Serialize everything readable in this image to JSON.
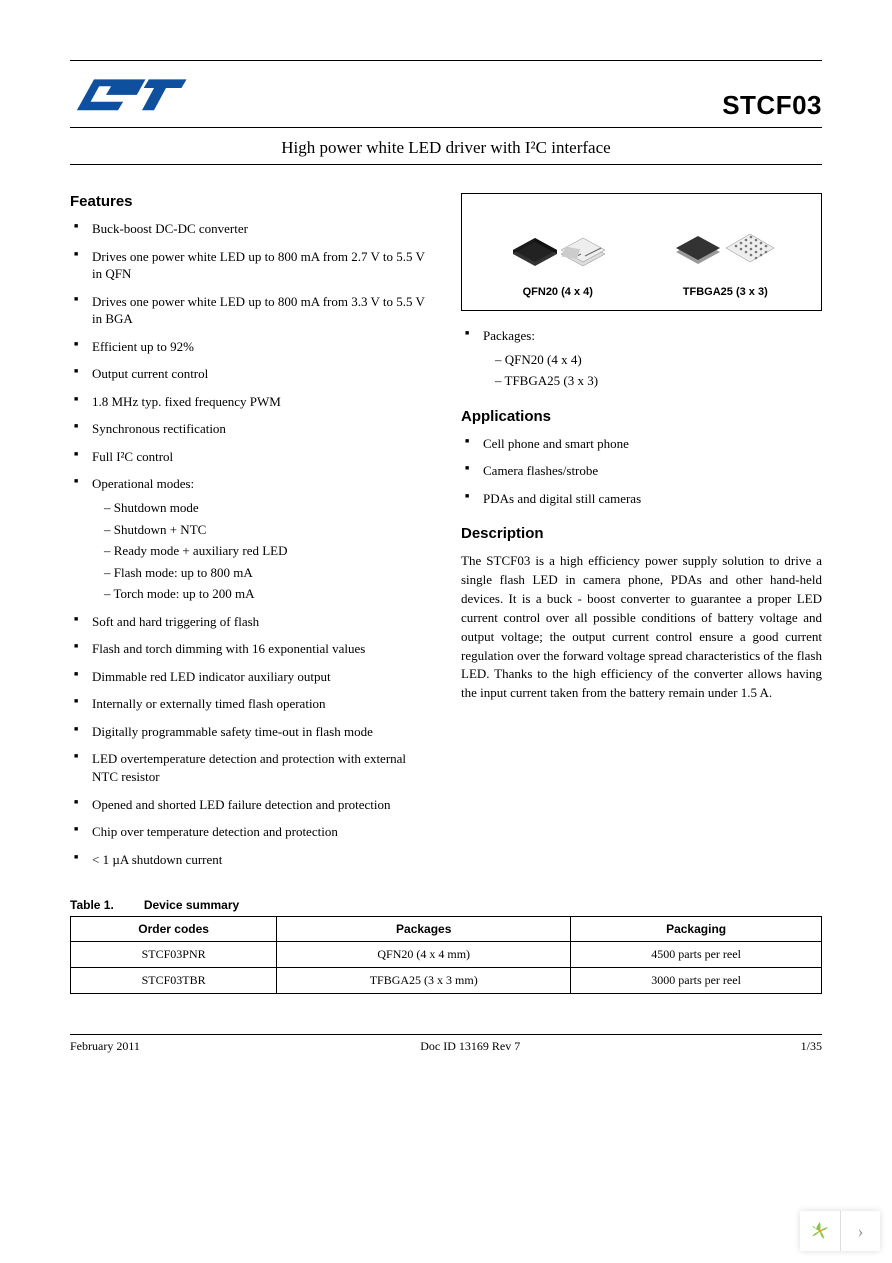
{
  "header": {
    "part_number": "STCF03",
    "subtitle": "High power white LED driver with I²C interface"
  },
  "features": {
    "heading": "Features",
    "items": [
      "Buck-boost DC-DC converter",
      "Drives one power white LED up to 800 mA from 2.7 V to 5.5 V in QFN",
      "Drives one power white LED up to 800 mA from 3.3 V to 5.5 V in BGA",
      "Efficient up to 92%",
      "Output current control",
      "1.8 MHz typ. fixed frequency PWM",
      "Synchronous rectification",
      "Full I²C control"
    ],
    "op_modes_label": "Operational modes:",
    "op_modes": [
      "Shutdown mode",
      "Shutdown + NTC",
      "Ready mode + auxiliary red LED",
      "Flash mode: up to 800 mA",
      "Torch mode: up to 200 mA"
    ],
    "items2": [
      "Soft and hard triggering of flash",
      "Flash and torch dimming with 16 exponential values",
      "Dimmable red LED indicator auxiliary output",
      "Internally or externally timed flash operation",
      "Digitally programmable safety time-out in flash mode",
      "LED overtemperature detection and protection with external NTC resistor",
      "Opened and shorted LED failure detection and protection",
      "Chip over temperature detection and protection",
      "< 1 µA shutdown current"
    ]
  },
  "packages": {
    "box": {
      "pkg1_label": "QFN20 (4 x 4)",
      "pkg2_label": "TFBGA25 (3 x 3)"
    },
    "list_heading": "Packages:",
    "list": [
      "QFN20  (4 x 4)",
      "TFBGA25 (3 x 3)"
    ]
  },
  "applications": {
    "heading": "Applications",
    "items": [
      "Cell phone and smart phone",
      "Camera flashes/strobe",
      "PDAs and digital still cameras"
    ]
  },
  "description": {
    "heading": "Description",
    "text": "The STCF03 is a high efficiency power supply solution to drive a single flash LED in camera phone, PDAs and other hand-held devices. It is a buck - boost converter to guarantee a proper LED current control over all possible conditions of battery voltage and output voltage; the output current control ensure a good current regulation over the forward voltage spread characteristics of the flash LED. Thanks to the high efficiency of the converter allows having the input current taken from the battery remain under 1.5 A."
  },
  "table": {
    "label_num": "Table 1.",
    "label_title": "Device summary",
    "columns": [
      "Order codes",
      "Packages",
      "Packaging"
    ],
    "rows": [
      [
        "STCF03PNR",
        "QFN20 (4 x 4 mm)",
        "4500 parts per reel"
      ],
      [
        "STCF03TBR",
        "TFBGA25 (3 x 3 mm)",
        "3000 parts per reel"
      ]
    ]
  },
  "footer": {
    "date": "February 2011",
    "doc": "Doc ID 13169 Rev 7",
    "page": "1/35"
  }
}
